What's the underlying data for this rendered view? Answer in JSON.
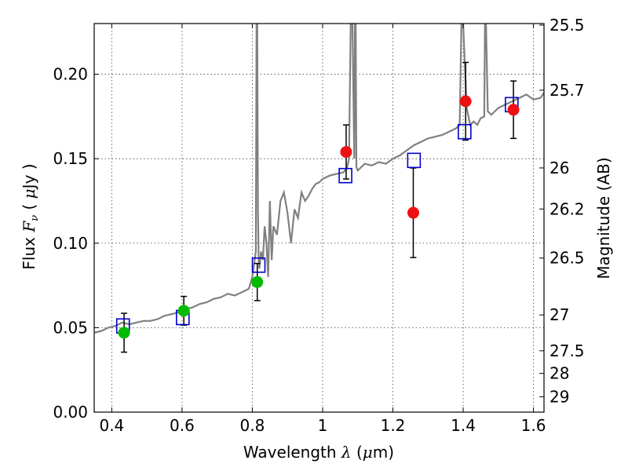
{
  "chart_data": {
    "type": "scatter",
    "xlabel": {
      "prefix": "Wavelength ",
      "symbol": "λ",
      "unit_open": " (",
      "unit_sym": "μ",
      "unit_rest": "m)"
    },
    "ylabel": {
      "prefix": "Flux ",
      "symbol_main": "F",
      "symbol_sub": "ν",
      "unit_open": " ( ",
      "unit_sym": "μ",
      "unit_rest": "Jy )"
    },
    "ylabel_right": "Magnitude (AB)",
    "xlim": [
      0.35,
      1.63
    ],
    "ylim": [
      0.0,
      0.23
    ],
    "grid": true,
    "x_ticks": [
      {
        "value": 0.4,
        "label": "0.4"
      },
      {
        "value": 0.6,
        "label": "0.6"
      },
      {
        "value": 0.8,
        "label": "0.8"
      },
      {
        "value": 1.0,
        "label": "1"
      },
      {
        "value": 1.2,
        "label": "1.2"
      },
      {
        "value": 1.4,
        "label": "1.4"
      },
      {
        "value": 1.6,
        "label": "1.6"
      }
    ],
    "y_ticks": [
      {
        "value": 0.0,
        "label": "0.00"
      },
      {
        "value": 0.05,
        "label": "0.05"
      },
      {
        "value": 0.1,
        "label": "0.10"
      },
      {
        "value": 0.15,
        "label": "0.15"
      },
      {
        "value": 0.2,
        "label": "0.20"
      }
    ],
    "y2_ticks": [
      {
        "value": 25.5,
        "label": "25.5"
      },
      {
        "value": 25.7,
        "label": "25.7"
      },
      {
        "value": 26.0,
        "label": "26"
      },
      {
        "value": 26.2,
        "label": "26.2"
      },
      {
        "value": 26.5,
        "label": "26.5"
      },
      {
        "value": 27.0,
        "label": "27"
      },
      {
        "value": 27.5,
        "label": "27.5"
      },
      {
        "value": 28.0,
        "label": "28"
      },
      {
        "value": 29.0,
        "label": "29"
      }
    ],
    "colors": {
      "spectrum": "#808080",
      "green": "#00bb00",
      "red": "#ee1111",
      "model_box": "#0000cc",
      "errorbar": "#000000",
      "grid": "#444444"
    },
    "spectrum": {
      "x": [
        0.35,
        0.37,
        0.39,
        0.41,
        0.43,
        0.45,
        0.47,
        0.49,
        0.51,
        0.53,
        0.55,
        0.57,
        0.59,
        0.61,
        0.63,
        0.65,
        0.67,
        0.69,
        0.71,
        0.73,
        0.75,
        0.77,
        0.79,
        0.8,
        0.81,
        0.812,
        0.814,
        0.816,
        0.818,
        0.82,
        0.825,
        0.83,
        0.835,
        0.84,
        0.845,
        0.85,
        0.855,
        0.86,
        0.87,
        0.88,
        0.89,
        0.9,
        0.91,
        0.92,
        0.93,
        0.94,
        0.95,
        0.96,
        0.97,
        0.98,
        0.99,
        1.0,
        1.02,
        1.04,
        1.06,
        1.07,
        1.075,
        1.08,
        1.085,
        1.09,
        1.092,
        1.094,
        1.096,
        1.1,
        1.12,
        1.14,
        1.16,
        1.18,
        1.2,
        1.22,
        1.24,
        1.26,
        1.28,
        1.3,
        1.32,
        1.34,
        1.36,
        1.38,
        1.39,
        1.395,
        1.4,
        1.41,
        1.42,
        1.43,
        1.44,
        1.45,
        1.46,
        1.462,
        1.465,
        1.47,
        1.48,
        1.49,
        1.5,
        1.52,
        1.54,
        1.56,
        1.58,
        1.6,
        1.62,
        1.63
      ],
      "y": [
        0.047,
        0.048,
        0.05,
        0.051,
        0.053,
        0.052,
        0.053,
        0.054,
        0.054,
        0.055,
        0.057,
        0.058,
        0.059,
        0.061,
        0.062,
        0.064,
        0.065,
        0.067,
        0.068,
        0.07,
        0.069,
        0.071,
        0.073,
        0.08,
        0.095,
        0.23,
        0.23,
        0.12,
        0.09,
        0.085,
        0.095,
        0.09,
        0.11,
        0.1,
        0.08,
        0.125,
        0.09,
        0.11,
        0.105,
        0.125,
        0.13,
        0.118,
        0.1,
        0.12,
        0.115,
        0.13,
        0.125,
        0.128,
        0.132,
        0.135,
        0.136,
        0.138,
        0.14,
        0.141,
        0.142,
        0.145,
        0.15,
        0.23,
        0.23,
        0.15,
        0.23,
        0.23,
        0.145,
        0.143,
        0.147,
        0.146,
        0.148,
        0.147,
        0.15,
        0.152,
        0.155,
        0.158,
        0.16,
        0.162,
        0.163,
        0.164,
        0.166,
        0.168,
        0.17,
        0.23,
        0.23,
        0.18,
        0.17,
        0.172,
        0.17,
        0.174,
        0.175,
        0.23,
        0.23,
        0.178,
        0.176,
        0.178,
        0.18,
        0.182,
        0.184,
        0.186,
        0.188,
        0.185,
        0.186,
        0.189
      ]
    },
    "observed_green": [
      {
        "x": 0.435,
        "y": 0.047,
        "yerr": 0.0115
      },
      {
        "x": 0.605,
        "y": 0.06,
        "yerr": 0.0085
      },
      {
        "x": 0.814,
        "y": 0.077,
        "yerr": 0.011
      }
    ],
    "observed_red": [
      {
        "x": 1.067,
        "y": 0.154,
        "yerr": 0.016
      },
      {
        "x": 1.258,
        "y": 0.118,
        "yerr": 0.0265
      },
      {
        "x": 1.407,
        "y": 0.184,
        "yerr": 0.023
      },
      {
        "x": 1.543,
        "y": 0.179,
        "yerr": 0.017
      }
    ],
    "model_points": [
      {
        "x": 0.432,
        "y": 0.051
      },
      {
        "x": 0.602,
        "y": 0.056
      },
      {
        "x": 0.818,
        "y": 0.087
      },
      {
        "x": 1.065,
        "y": 0.14
      },
      {
        "x": 1.26,
        "y": 0.149
      },
      {
        "x": 1.404,
        "y": 0.166
      },
      {
        "x": 1.538,
        "y": 0.182
      }
    ]
  }
}
